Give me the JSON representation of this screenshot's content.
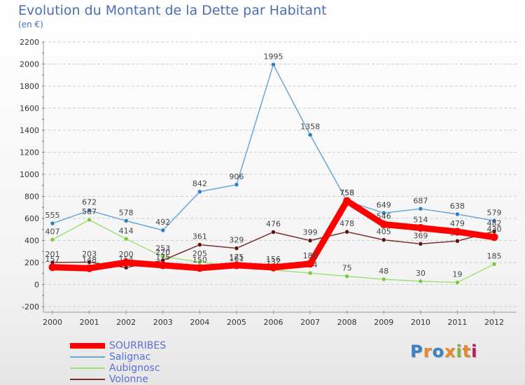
{
  "title": "Evolution du Montant de la Dette par Habitant",
  "unit": "(en €)",
  "logo": {
    "text": "Proxiti",
    "colors": [
      "#3b82c4",
      "#e8892b",
      "#3b82c4",
      "#e8892b",
      "#7cb342",
      "#e8892b",
      "#c2185b"
    ]
  },
  "chart_data": {
    "type": "line",
    "x": [
      "2000",
      "2001",
      "2002",
      "2003",
      "2004",
      "2005",
      "2006",
      "2007",
      "2008",
      "2009",
      "2010",
      "2011",
      "2012"
    ],
    "ylim": [
      -200,
      2200
    ],
    "yticks": [
      "-200",
      "0",
      "200",
      "400",
      "600",
      "800",
      "1000",
      "1200",
      "1400",
      "1600",
      "1800",
      "2000",
      "2200"
    ],
    "grid": "horizontal dashed",
    "legend_position": "bottom-left",
    "series": [
      {
        "name": "Salignac",
        "color": "#6aa6d6",
        "marker": "#2f7fc4",
        "values": [
          555,
          672,
          578,
          492,
          842,
          906,
          1995,
          1358,
          758,
          649,
          687,
          638,
          579
        ],
        "labels": [
          "555",
          "672",
          "578",
          "492",
          "842",
          "906",
          "1995",
          "1358",
          "758",
          "649",
          "687",
          "638",
          "579"
        ]
      },
      {
        "name": "Aubignosc",
        "color": "#9fe07a",
        "marker": "#7cc840",
        "values": [
          407,
          587,
          414,
          253,
          205,
          161,
          132,
          104,
          75,
          48,
          30,
          19,
          185
        ],
        "labels": [
          "407",
          "587",
          "414",
          "253",
          "205",
          "161",
          "132",
          "104",
          "75",
          "48",
          "30",
          "19",
          "185"
        ]
      },
      {
        "name": "Volonne",
        "color": "#7a2e2e",
        "marker": "#5a1616",
        "values": [
          201,
          203,
          154,
          220,
          361,
          329,
          476,
          399,
          478,
          405,
          369,
          395,
          482
        ],
        "labels": [
          "201",
          "203",
          "154",
          "220",
          "361",
          "329",
          "476",
          "399",
          "478",
          "405",
          "369",
          "395",
          "482"
        ]
      },
      {
        "name": "SOURRIBES",
        "color": "#ff0000",
        "marker": "#ff0000",
        "values": [
          157,
          148,
          200,
          175,
          150,
          175,
          156,
          188,
          758,
          546,
          514,
          479,
          430
        ],
        "labels": [
          "157",
          "148",
          "200",
          "175",
          "150",
          "175",
          "156",
          "188",
          "758",
          "546",
          "514",
          "479",
          "430"
        ]
      }
    ],
    "legend": [
      "SOURRIBES",
      "Salignac",
      "Aubignosc",
      "Volonne"
    ]
  }
}
